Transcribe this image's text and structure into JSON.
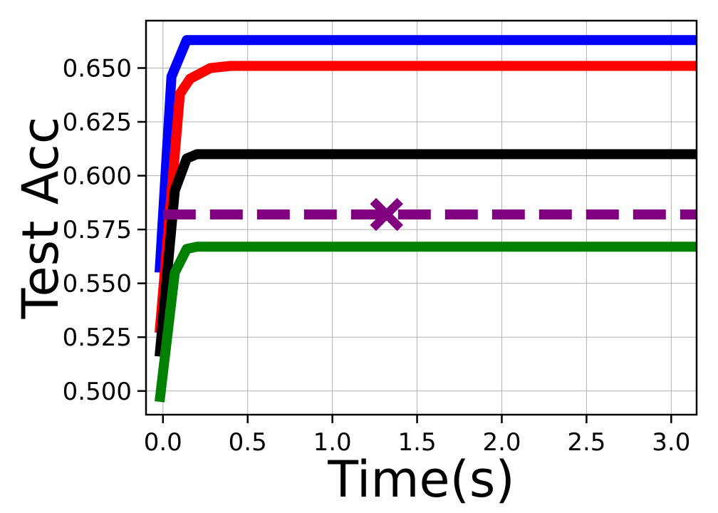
{
  "chart_data": {
    "type": "line",
    "title": "",
    "xlabel": "Time(s)",
    "ylabel": "Test Acc",
    "xlim": [
      -0.1,
      3.15
    ],
    "ylim": [
      0.489,
      0.672
    ],
    "xticks": [
      0.0,
      0.5,
      1.0,
      1.5,
      2.0,
      2.5,
      3.0
    ],
    "xtick_labels": [
      "0.0",
      "0.5",
      "1.0",
      "1.5",
      "2.0",
      "2.5",
      "3.0"
    ],
    "yticks": [
      0.5,
      0.525,
      0.55,
      0.575,
      0.6,
      0.625,
      0.65
    ],
    "ytick_labels": [
      "0.500",
      "0.525",
      "0.550",
      "0.575",
      "0.600",
      "0.625",
      "0.650"
    ],
    "grid": true,
    "legend": "none",
    "series": [
      {
        "color": "#0000ff",
        "style": "solid",
        "points": [
          [
            -0.02,
            0.555
          ],
          [
            0.05,
            0.646
          ],
          [
            0.14,
            0.663
          ],
          [
            0.25,
            0.663
          ],
          [
            3.15,
            0.663
          ]
        ]
      },
      {
        "color": "#ff0000",
        "style": "solid",
        "points": [
          [
            -0.02,
            0.527
          ],
          [
            0.1,
            0.638
          ],
          [
            0.16,
            0.645
          ],
          [
            0.28,
            0.65
          ],
          [
            0.4,
            0.651
          ],
          [
            3.15,
            0.651
          ]
        ]
      },
      {
        "color": "#000000",
        "style": "solid",
        "points": [
          [
            -0.02,
            0.516
          ],
          [
            0.07,
            0.593
          ],
          [
            0.14,
            0.608
          ],
          [
            0.2,
            0.61
          ],
          [
            3.15,
            0.61
          ]
        ]
      },
      {
        "color": "#008000",
        "style": "solid",
        "points": [
          [
            -0.02,
            0.495
          ],
          [
            0.07,
            0.555
          ],
          [
            0.14,
            0.566
          ],
          [
            0.2,
            0.567
          ],
          [
            3.15,
            0.567
          ]
        ]
      },
      {
        "color": "#800080",
        "style": "dashed",
        "points": [
          [
            0.0,
            0.582
          ],
          [
            3.15,
            0.582
          ]
        ],
        "marker": {
          "shape": "x",
          "x": 1.32,
          "y": 0.582
        }
      }
    ]
  }
}
